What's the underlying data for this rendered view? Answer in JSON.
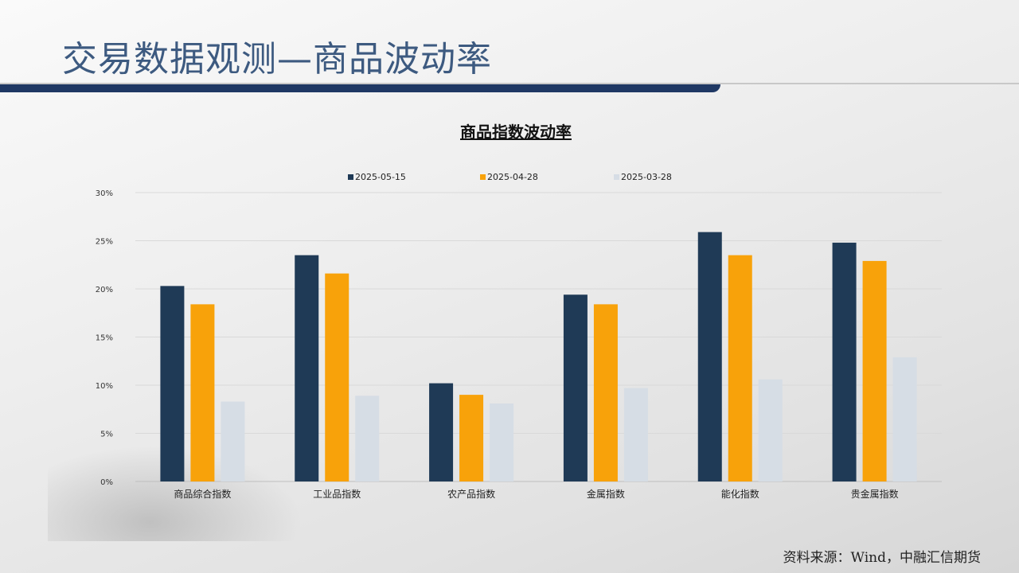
{
  "header": {
    "title": "交易数据观测—商品波动率"
  },
  "source": "资料来源：Wind，中融汇信期货",
  "chart_data": {
    "type": "bar",
    "title": "商品指数波动率",
    "xlabel": "",
    "ylabel": "",
    "ylim": [
      0,
      30
    ],
    "yticks": [
      "0%",
      "5%",
      "10%",
      "15%",
      "20%",
      "25%",
      "30%"
    ],
    "ytick_values": [
      0,
      5,
      10,
      15,
      20,
      25,
      30
    ],
    "grid": true,
    "legend_position": "top",
    "categories": [
      "商品综合指数",
      "工业品指数",
      "农产品指数",
      "金属指数",
      "能化指数",
      "贵金属指数"
    ],
    "series": [
      {
        "name": "2025-05-15",
        "color": "#1f3a56",
        "values": [
          20.3,
          23.5,
          10.2,
          19.4,
          25.9,
          24.8
        ]
      },
      {
        "name": "2025-04-28",
        "color": "#f8a20a",
        "values": [
          18.4,
          21.6,
          9.0,
          18.4,
          23.5,
          22.9
        ]
      },
      {
        "name": "2025-03-28",
        "color": "#d6dde5",
        "values": [
          8.3,
          8.9,
          8.1,
          9.7,
          10.6,
          12.9
        ]
      }
    ]
  }
}
